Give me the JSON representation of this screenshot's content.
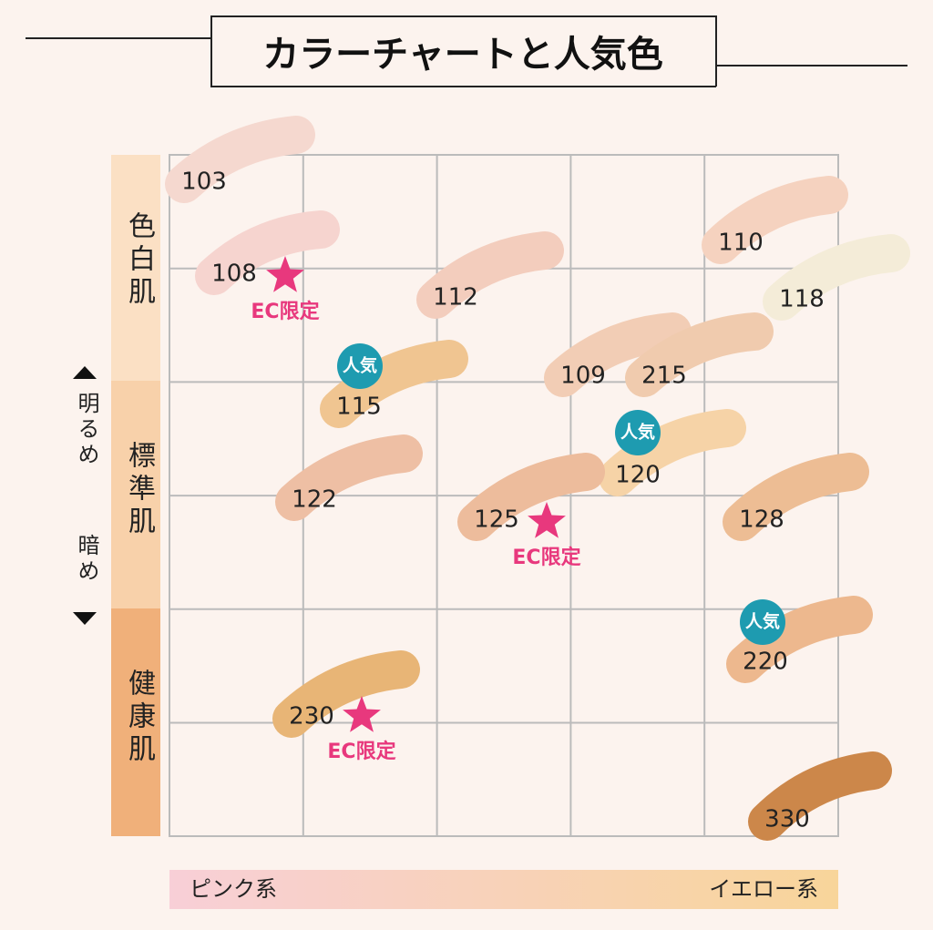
{
  "title": "カラーチャートと人気色",
  "y_axis": {
    "groups": [
      "色白肌",
      "標準肌",
      "健康肌"
    ],
    "brighter": "明るめ",
    "darker": "暗め"
  },
  "x_axis": {
    "left": "ピンク系",
    "right": "イエロー系"
  },
  "shades": [
    {
      "label": "103",
      "color": "#f5d8cf"
    },
    {
      "label": "108",
      "color": "#f6d4cf",
      "badge": "EC限定"
    },
    {
      "label": "112",
      "color": "#f3cdbd"
    },
    {
      "label": "110",
      "color": "#f5d2bf"
    },
    {
      "label": "118",
      "color": "#f4ecd8"
    },
    {
      "label": "115",
      "color": "#f0c591",
      "badge": "人気"
    },
    {
      "label": "109",
      "color": "#f2cdb5"
    },
    {
      "label": "215",
      "color": "#f0cbae"
    },
    {
      "label": "120",
      "color": "#f6d3a7",
      "badge": "人気"
    },
    {
      "label": "122",
      "color": "#eebfa4"
    },
    {
      "label": "125",
      "color": "#edbc9c",
      "badge": "EC限定"
    },
    {
      "label": "128",
      "color": "#edbd94"
    },
    {
      "label": "220",
      "color": "#edb88e",
      "badge": "人気"
    },
    {
      "label": "230",
      "color": "#e8b576",
      "badge": "EC限定"
    },
    {
      "label": "330",
      "color": "#cc874a"
    }
  ]
}
